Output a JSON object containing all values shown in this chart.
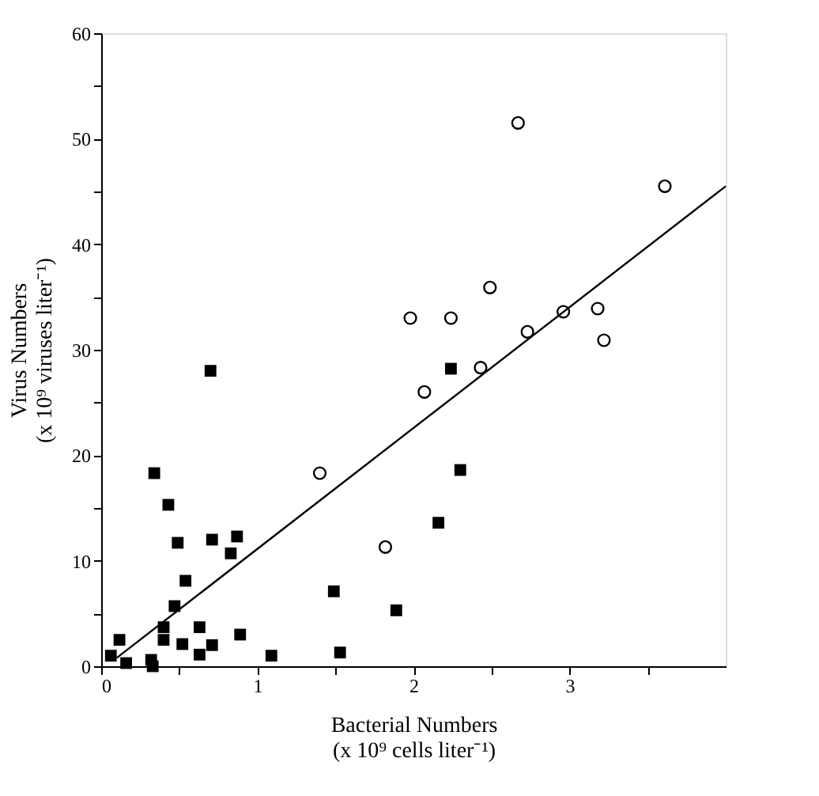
{
  "chart_data": {
    "type": "scatter",
    "xlabel": "Bacterial Numbers\n(x 10⁹ cells liter⁻¹)",
    "ylabel": "Virus Numbers\n(x 10⁹ viruses liter⁻¹)",
    "xlim": [
      0,
      4
    ],
    "xticks": [
      0,
      {
        "value": 0.5,
        "label": null
      },
      1,
      {
        "value": 1.5,
        "label": null
      },
      2,
      {
        "value": 2.5,
        "label": null
      },
      3,
      {
        "value": 3.5,
        "label": null
      }
    ],
    "ylim": [
      0,
      60
    ],
    "yticks": [
      0,
      {
        "value": 5,
        "label": null
      },
      10,
      {
        "value": 15,
        "label": null
      },
      20,
      {
        "value": 25,
        "label": null
      },
      30,
      {
        "value": 35,
        "label": null
      },
      40,
      {
        "value": 45,
        "label": null
      },
      50,
      {
        "value": 55,
        "label": null
      },
      60
    ],
    "grid": false,
    "series": [
      {
        "marker": "square",
        "color": "#000000",
        "x": [
          0.117,
          0.062,
          0.16,
          0.32,
          0.33,
          0.34,
          0.43,
          0.7,
          0.49,
          0.71,
          0.87,
          0.83,
          0.54,
          0.47,
          0.4,
          0.4,
          0.52,
          0.63,
          0.63,
          0.71,
          0.89,
          1.09,
          1.49,
          1.53,
          2.24,
          2.3,
          2.16,
          1.89
        ],
        "values": [
          2.5,
          1.0,
          0.3,
          0.6,
          0.0,
          18.3,
          15.3,
          28.0,
          11.7,
          12.0,
          12.3,
          10.7,
          8.1,
          5.7,
          3.7,
          2.5,
          2.1,
          3.7,
          1.1,
          2.0,
          3.0,
          1.0,
          7.1,
          1.3,
          28.2,
          18.6,
          13.6,
          5.3
        ]
      },
      {
        "marker": "circle",
        "color": "#000000",
        "x": [
          2.67,
          3.61,
          2.49,
          1.98,
          2.24,
          2.96,
          3.18,
          3.22,
          2.73,
          2.43,
          2.07,
          1.82,
          1.4
        ],
        "values": [
          51.5,
          45.5,
          35.9,
          33.0,
          33.0,
          33.6,
          33.9,
          30.9,
          31.7,
          28.3,
          26.0,
          11.3,
          18.3
        ]
      },
      {
        "type": "line",
        "marker": "none",
        "line_style": "solid",
        "color": "#000000",
        "x": [
          0.1,
          4.0
        ],
        "values": [
          0.8,
          45.5
        ]
      }
    ]
  }
}
